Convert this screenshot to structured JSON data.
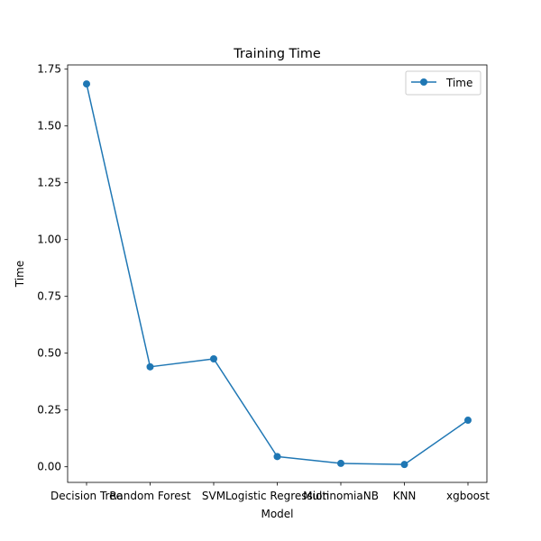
{
  "chart_data": {
    "type": "line",
    "title": "Training Time",
    "xlabel": "Model",
    "ylabel": "Time",
    "categories": [
      "Decision Tree",
      "Random Forest",
      "SVM",
      "Logistic Regression",
      "MultinomiaNB",
      "KNN",
      "xgboost"
    ],
    "series": [
      {
        "name": "Time",
        "values": [
          1.685,
          0.44,
          0.475,
          0.045,
          0.015,
          0.01,
          0.205
        ],
        "color": "#1f77b4"
      }
    ],
    "ylim": [
      -0.0687,
      1.7687
    ],
    "yticks": [
      0.0,
      0.25,
      0.5,
      0.75,
      1.0,
      1.25,
      1.5,
      1.75
    ],
    "ytick_labels": [
      "0.00",
      "0.25",
      "0.50",
      "0.75",
      "1.00",
      "1.25",
      "1.50",
      "1.75"
    ],
    "grid": false,
    "legend": "upper-right"
  }
}
